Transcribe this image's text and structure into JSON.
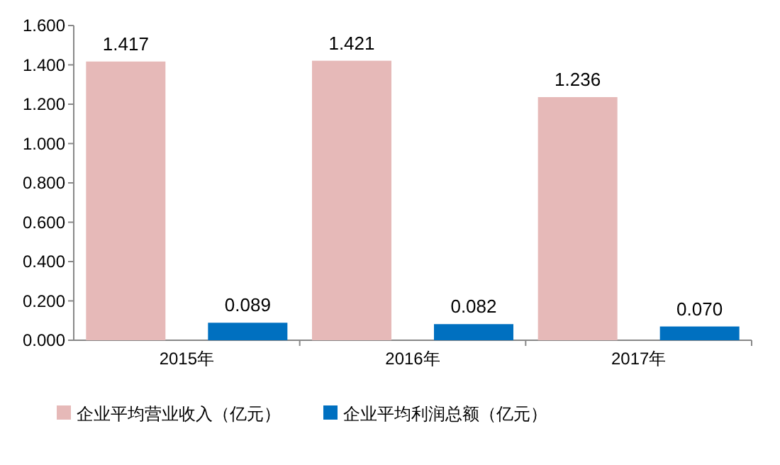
{
  "chart_data": {
    "type": "bar",
    "categories": [
      "2015年",
      "2016年",
      "2017年"
    ],
    "series": [
      {
        "name": "企业平均营业收入（亿元）",
        "color": "#e6b9b8",
        "values": [
          1.417,
          1.421,
          1.236
        ]
      },
      {
        "name": "企业平均利润总额（亿元）",
        "color": "#0070c0",
        "values": [
          0.089,
          0.082,
          0.07
        ]
      }
    ],
    "ylim": [
      0,
      1.6
    ],
    "yticks": [
      {
        "value": 0,
        "label": "0.000"
      },
      {
        "value": 0.2,
        "label": "0.200"
      },
      {
        "value": 0.4,
        "label": "0.400"
      },
      {
        "value": 0.6,
        "label": "0.600"
      },
      {
        "value": 0.8,
        "label": "0.800"
      },
      {
        "value": 1.0,
        "label": "1.000"
      },
      {
        "value": 1.2,
        "label": "1.200"
      },
      {
        "value": 1.4,
        "label": "1.400"
      },
      {
        "value": 1.6,
        "label": "1.600"
      }
    ],
    "value_labels": [
      [
        "1.417",
        "1.421",
        "1.236"
      ],
      [
        "0.089",
        "0.082",
        "0.070"
      ]
    ],
    "grid": false,
    "legend": "bottom"
  }
}
